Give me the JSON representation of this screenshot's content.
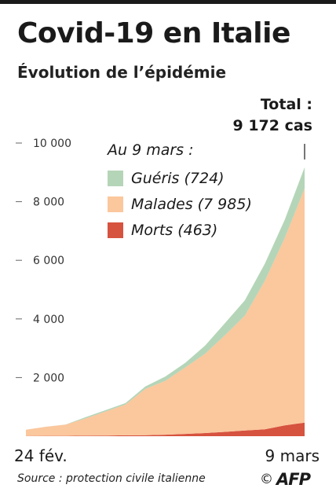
{
  "header": {
    "title": "Covid-19 en Italie",
    "subtitle": "Évolution de l’épidémie"
  },
  "total": {
    "line1": "Total :",
    "line2": "9 172 cas"
  },
  "legend": {
    "title": "Au 9 mars :",
    "items": [
      {
        "label": "Guéris (724)",
        "color": "#b5d5b8"
      },
      {
        "label": "Malades (7 985)",
        "color": "#fbc79d"
      },
      {
        "label": "Morts (463)",
        "color": "#d6533f"
      }
    ]
  },
  "footer": {
    "x_start": "24 fév.",
    "x_end": "9 mars",
    "source": "Source : protection civile italienne",
    "copyright": "©",
    "brand": "AFP"
  },
  "chart_data": {
    "type": "area",
    "stacked": true,
    "x": [
      "2020-02-24",
      "2020-02-25",
      "2020-02-26",
      "2020-02-27",
      "2020-02-28",
      "2020-02-29",
      "2020-03-01",
      "2020-03-02",
      "2020-03-03",
      "2020-03-04",
      "2020-03-05",
      "2020-03-06",
      "2020-03-07",
      "2020-03-08",
      "2020-03-09"
    ],
    "xlabels": [
      "24 fév.",
      "9 mars"
    ],
    "yticks": [
      2000,
      4000,
      6000,
      8000,
      10000
    ],
    "ytick_labels": [
      "2 000",
      "4 000",
      "6 000",
      "8 000",
      "10 000"
    ],
    "ylim": [
      0,
      10000
    ],
    "grid": false,
    "series": [
      {
        "name": "Morts (463)",
        "color": "#d6533f",
        "values": [
          7,
          10,
          12,
          17,
          21,
          29,
          34,
          52,
          79,
          107,
          148,
          197,
          233,
          366,
          463
        ]
      },
      {
        "name": "Malades (7 985)",
        "color": "#fbc79d",
        "values": [
          214,
          311,
          385,
          588,
          821,
          1049,
          1577,
          1835,
          2263,
          2706,
          3296,
          3916,
          5061,
          6387,
          7985
        ]
      },
      {
        "name": "Guéris (724)",
        "color": "#b5d5b8",
        "values": [
          1,
          1,
          3,
          45,
          46,
          50,
          83,
          149,
          160,
          276,
          414,
          523,
          589,
          622,
          724
        ]
      }
    ]
  }
}
